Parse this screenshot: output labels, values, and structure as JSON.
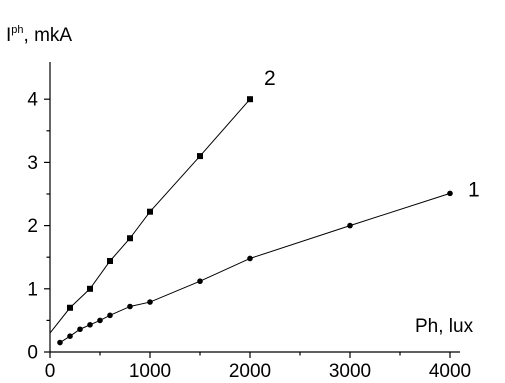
{
  "chart_data": {
    "type": "line",
    "ylabel": {
      "main": "I",
      "sup": "ph",
      "rest": ", mkA"
    },
    "xlabel": "Ph, lux",
    "xlim": [
      0,
      4000
    ],
    "ylim": [
      0,
      4.3
    ],
    "x_ticks": [
      "0",
      "1000",
      "2000",
      "3000",
      "4000"
    ],
    "x_tick_values": [
      0,
      1000,
      2000,
      3000,
      4000
    ],
    "y_ticks": [
      "0",
      "1",
      "2",
      "3",
      "4"
    ],
    "y_tick_values": [
      0,
      1,
      2,
      3,
      4
    ],
    "grid": false,
    "series": [
      {
        "name": "1",
        "marker": "circle",
        "x": [
          100,
          200,
          300,
          400,
          500,
          600,
          800,
          1000,
          1500,
          2000,
          3000,
          4000
        ],
        "y": [
          0.15,
          0.25,
          0.36,
          0.43,
          0.5,
          0.58,
          0.72,
          0.79,
          1.12,
          1.48,
          2.0,
          2.51
        ]
      },
      {
        "name": "2",
        "marker": "square",
        "line_start": [
          0,
          0.3
        ],
        "x": [
          200,
          400,
          600,
          800,
          1000,
          1500,
          2000
        ],
        "y": [
          0.7,
          1.0,
          1.44,
          1.8,
          2.22,
          3.1,
          4.0
        ]
      }
    ]
  }
}
